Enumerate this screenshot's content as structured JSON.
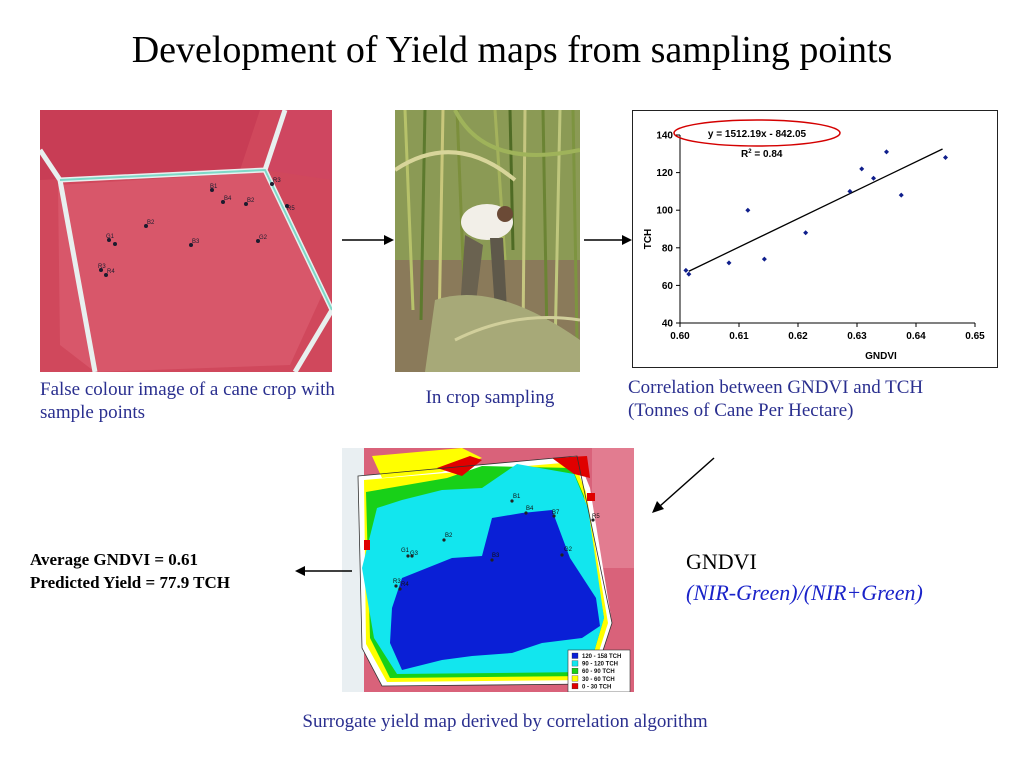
{
  "title": "Development of Yield maps from sampling points",
  "captions": {
    "false_colour": "False colour image of a cane crop with sample points",
    "sampling": "In crop sampling",
    "correlation_line1": "Correlation between GNDVI and TCH",
    "correlation_line2": "(Tonnes of Cane Per Hectare)",
    "yield_map": "Surrogate yield map derived by correlation algorithm"
  },
  "stats": {
    "avg_gndvi": "Average GNDVI = 0.61",
    "predicted_yield": "Predicted Yield = 77.9 TCH"
  },
  "gndvi": {
    "label": "GNDVI",
    "formula": "(NIR-Green)/(NIR+Green)"
  },
  "sample_points": [
    "B1",
    "B4",
    "B2",
    "R3",
    "R5",
    "G1",
    "G2",
    "B2",
    "B3",
    "G2",
    "R3",
    "R4"
  ],
  "map_points": [
    "B1",
    "B4",
    "B7",
    "R5",
    "B2",
    "G1",
    "G3",
    "B3",
    "G2",
    "R3",
    "R4"
  ],
  "legend": [
    {
      "label": "120 - 158 TCH",
      "color": "#0a1fd6"
    },
    {
      "label": "90 - 120 TCH",
      "color": "#12e6ee"
    },
    {
      "label": "60 - 90 TCH",
      "color": "#18d018"
    },
    {
      "label": "30 - 60 TCH",
      "color": "#ffff00"
    },
    {
      "label": "0 - 30 TCH",
      "color": "#e00000"
    }
  ],
  "colors": {
    "caption": "#2a2f8f",
    "formula": "#1a23c9",
    "crop": "#d2475a",
    "oval": "#d40000"
  },
  "chart_data": {
    "type": "scatter",
    "equation": "y = 1512.19x - 842.05",
    "r2_label": "R",
    "r2_sup": "2",
    "r2_value": " = 0.84",
    "xlabel": "GNDVI",
    "ylabel": "TCH",
    "xlim": [
      0.6,
      0.65
    ],
    "ylim": [
      40,
      140
    ],
    "xticks": [
      "0.60",
      "0.61",
      "0.62",
      "0.63",
      "0.64",
      "0.65"
    ],
    "yticks": [
      "40",
      "60",
      "80",
      "100",
      "120",
      "140"
    ],
    "points": [
      [
        0.601,
        68
      ],
      [
        0.6015,
        66
      ],
      [
        0.6083,
        72
      ],
      [
        0.6115,
        100
      ],
      [
        0.6143,
        74
      ],
      [
        0.6213,
        88
      ],
      [
        0.6288,
        110
      ],
      [
        0.6308,
        122
      ],
      [
        0.6328,
        117
      ],
      [
        0.635,
        131
      ],
      [
        0.6375,
        108
      ],
      [
        0.645,
        128
      ]
    ],
    "trendline": {
      "slope": 1512.19,
      "intercept": -842.05,
      "x_range": [
        0.6015,
        0.6445
      ]
    },
    "grid": false
  }
}
